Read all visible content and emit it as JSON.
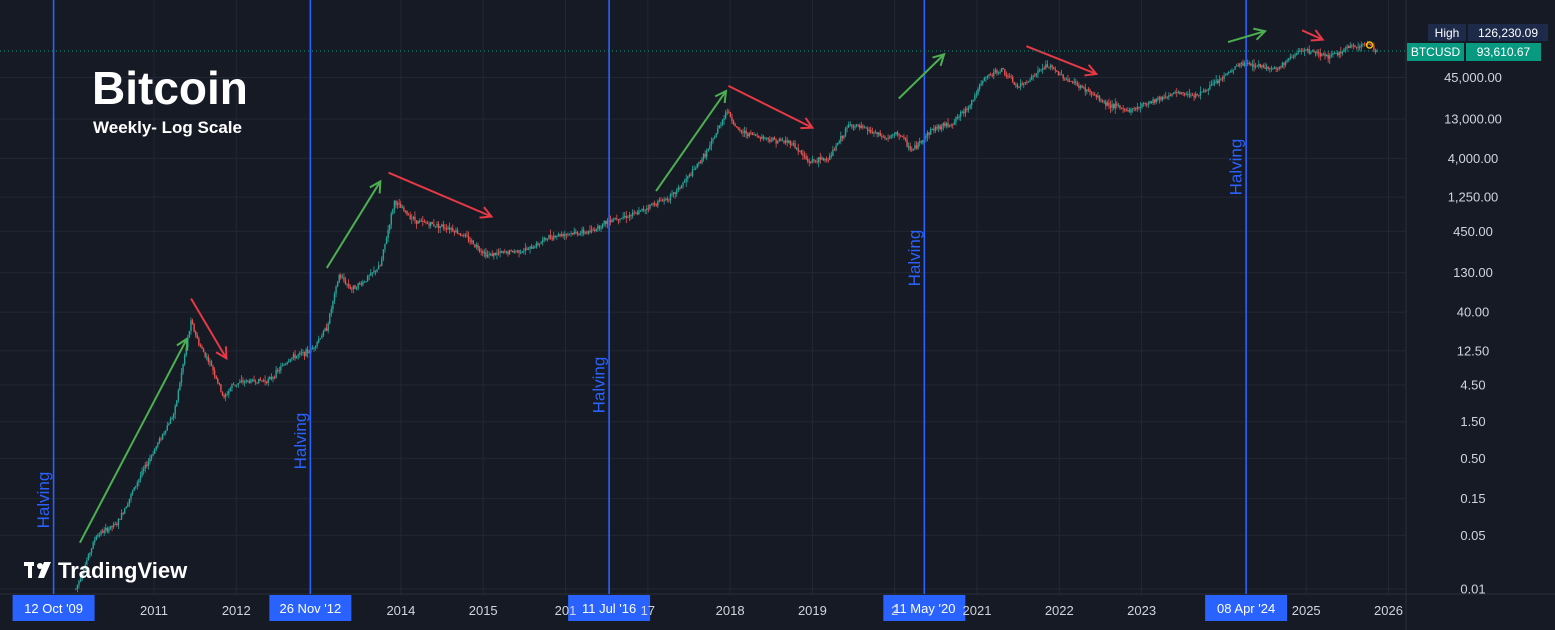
{
  "chart_data": {
    "type": "candlestick",
    "title": "Bitcoin",
    "subtitle": "Weekly- Log Scale",
    "symbol": "BTCUSD",
    "scale": "log",
    "y_ticks": [
      0.01,
      0.05,
      0.15,
      0.5,
      1.5,
      4.5,
      12.5,
      40.0,
      130.0,
      450.0,
      1250.0,
      4000.0,
      13000.0,
      45000.0
    ],
    "y_tick_labels": [
      "0.01",
      "0.05",
      "0.15",
      "0.50",
      "1.50",
      "4.50",
      "12.50",
      "40.00",
      "130.00",
      "450.00",
      "1,250.00",
      "4,000.00",
      "13,000.00",
      "45,000.00"
    ],
    "x_ticks": [
      {
        "label": "2011",
        "t": 2011.0
      },
      {
        "label": "2012",
        "t": 2012.0
      },
      {
        "label": "2014",
        "t": 2014.0
      },
      {
        "label": "2015",
        "t": 2015.0
      },
      {
        "label": "201",
        "t": 2016.0
      },
      {
        "label": "17",
        "t": 2017.0
      },
      {
        "label": "2018",
        "t": 2018.0
      },
      {
        "label": "2019",
        "t": 2019.0
      },
      {
        "label": "2",
        "t": 2020.0
      },
      {
        "label": "2021",
        "t": 2021.0
      },
      {
        "label": "2022",
        "t": 2022.0
      },
      {
        "label": "2023",
        "t": 2023.0
      },
      {
        "label": "2025",
        "t": 2025.0
      },
      {
        "label": "2026",
        "t": 2026.0
      }
    ],
    "price_path": [
      [
        2010.05,
        0.01
      ],
      [
        2010.3,
        0.05
      ],
      [
        2010.55,
        0.07
      ],
      [
        2010.8,
        0.25
      ],
      [
        2011.05,
        0.8
      ],
      [
        2011.25,
        2.0
      ],
      [
        2011.35,
        8.0
      ],
      [
        2011.45,
        30.0
      ],
      [
        2011.55,
        15.0
      ],
      [
        2011.7,
        8.0
      ],
      [
        2011.85,
        3.0
      ],
      [
        2011.95,
        4.5
      ],
      [
        2012.1,
        5.0
      ],
      [
        2012.4,
        5.2
      ],
      [
        2012.65,
        10.0
      ],
      [
        2012.9,
        12.5
      ],
      [
        2013.1,
        25.0
      ],
      [
        2013.25,
        120.0
      ],
      [
        2013.4,
        80.0
      ],
      [
        2013.55,
        100.0
      ],
      [
        2013.75,
        160.0
      ],
      [
        2013.92,
        1100.0
      ],
      [
        2014.05,
        800.0
      ],
      [
        2014.2,
        600.0
      ],
      [
        2014.4,
        550.0
      ],
      [
        2014.6,
        500.0
      ],
      [
        2014.8,
        370.0
      ],
      [
        2015.05,
        220.0
      ],
      [
        2015.3,
        240.0
      ],
      [
        2015.55,
        260.0
      ],
      [
        2015.8,
        380.0
      ],
      [
        2016.0,
        420.0
      ],
      [
        2016.3,
        440.0
      ],
      [
        2016.55,
        650.0
      ],
      [
        2016.85,
        750.0
      ],
      [
        2017.05,
        1000.0
      ],
      [
        2017.3,
        1300.0
      ],
      [
        2017.55,
        2700.0
      ],
      [
        2017.75,
        5500.0
      ],
      [
        2017.96,
        17000.0
      ],
      [
        2018.1,
        9000.0
      ],
      [
        2018.3,
        8000.0
      ],
      [
        2018.5,
        7000.0
      ],
      [
        2018.75,
        6400.0
      ],
      [
        2018.95,
        3600.0
      ],
      [
        2019.2,
        4000.0
      ],
      [
        2019.45,
        11000.0
      ],
      [
        2019.65,
        9500.0
      ],
      [
        2019.9,
        7200.0
      ],
      [
        2020.05,
        8500.0
      ],
      [
        2020.21,
        5000.0
      ],
      [
        2020.45,
        9500.0
      ],
      [
        2020.7,
        11500.0
      ],
      [
        2020.9,
        19000.0
      ],
      [
        2021.1,
        45000.0
      ],
      [
        2021.3,
        57000.0
      ],
      [
        2021.5,
        33000.0
      ],
      [
        2021.85,
        65000.0
      ],
      [
        2022.1,
        42000.0
      ],
      [
        2022.35,
        30000.0
      ],
      [
        2022.55,
        21000.0
      ],
      [
        2022.85,
        16500.0
      ],
      [
        2023.1,
        22000.0
      ],
      [
        2023.4,
        28000.0
      ],
      [
        2023.7,
        27000.0
      ],
      [
        2023.95,
        42000.0
      ],
      [
        2024.2,
        68000.0
      ],
      [
        2024.4,
        65000.0
      ],
      [
        2024.65,
        58000.0
      ],
      [
        2024.9,
        98000.0
      ],
      [
        2025.1,
        96000.0
      ],
      [
        2025.3,
        83000.0
      ],
      [
        2025.5,
        108000.0
      ],
      [
        2025.77,
        124000.0
      ],
      [
        2025.88,
        93610.67
      ]
    ],
    "halvings": [
      {
        "label": "Halving",
        "t": 2009.78,
        "date": "12 Oct '09"
      },
      {
        "label": "Halving",
        "t": 2012.9,
        "date": "26 Nov '12"
      },
      {
        "label": "Halving",
        "t": 2016.53,
        "date": "11 Jul '16"
      },
      {
        "label": "Halving",
        "t": 2020.36,
        "date": "11 May '20"
      },
      {
        "label": "Halving",
        "t": 2024.27,
        "date": "08 Apr '24"
      }
    ],
    "arrows": [
      {
        "color": "green",
        "from": [
          2010.1,
          0.04
        ],
        "to": [
          2011.4,
          18.0
        ]
      },
      {
        "color": "red",
        "from": [
          2011.45,
          60.0
        ],
        "to": [
          2011.88,
          10.0
        ]
      },
      {
        "color": "green",
        "from": [
          2013.1,
          150.0
        ],
        "to": [
          2013.75,
          2000.0
        ]
      },
      {
        "color": "red",
        "from": [
          2013.85,
          2600.0
        ],
        "to": [
          2015.1,
          700.0
        ]
      },
      {
        "color": "green",
        "from": [
          2017.1,
          1500.0
        ],
        "to": [
          2017.95,
          30000.0
        ]
      },
      {
        "color": "red",
        "from": [
          2017.98,
          35000.0
        ],
        "to": [
          2019.0,
          10000.0
        ]
      },
      {
        "color": "green",
        "from": [
          2020.05,
          24000.0
        ],
        "to": [
          2020.6,
          90000.0
        ]
      },
      {
        "color": "red",
        "from": [
          2021.6,
          115000.0
        ],
        "to": [
          2022.45,
          50000.0
        ]
      },
      {
        "color": "green",
        "from": [
          2024.05,
          130000.0
        ],
        "to": [
          2024.5,
          180000.0
        ]
      },
      {
        "color": "red",
        "from": [
          2024.95,
          185000.0
        ],
        "to": [
          2025.2,
          140000.0
        ]
      }
    ],
    "high": {
      "label": "High",
      "value": "126,230.09"
    },
    "last": {
      "label": "BTCUSD",
      "value": "93,610.67",
      "price": 93610.67
    },
    "colors": {
      "background": "#161a25",
      "grid": "#232733",
      "up": "#26a69a",
      "down": "#ef5350",
      "halving": "#2962ff",
      "arrow_green": "#4caf50",
      "arrow_red": "#e53945",
      "high_tag": "#1e2a4a",
      "price_tag": "#089981"
    }
  },
  "brand": {
    "name": "TradingView",
    "logo_text": "17"
  }
}
